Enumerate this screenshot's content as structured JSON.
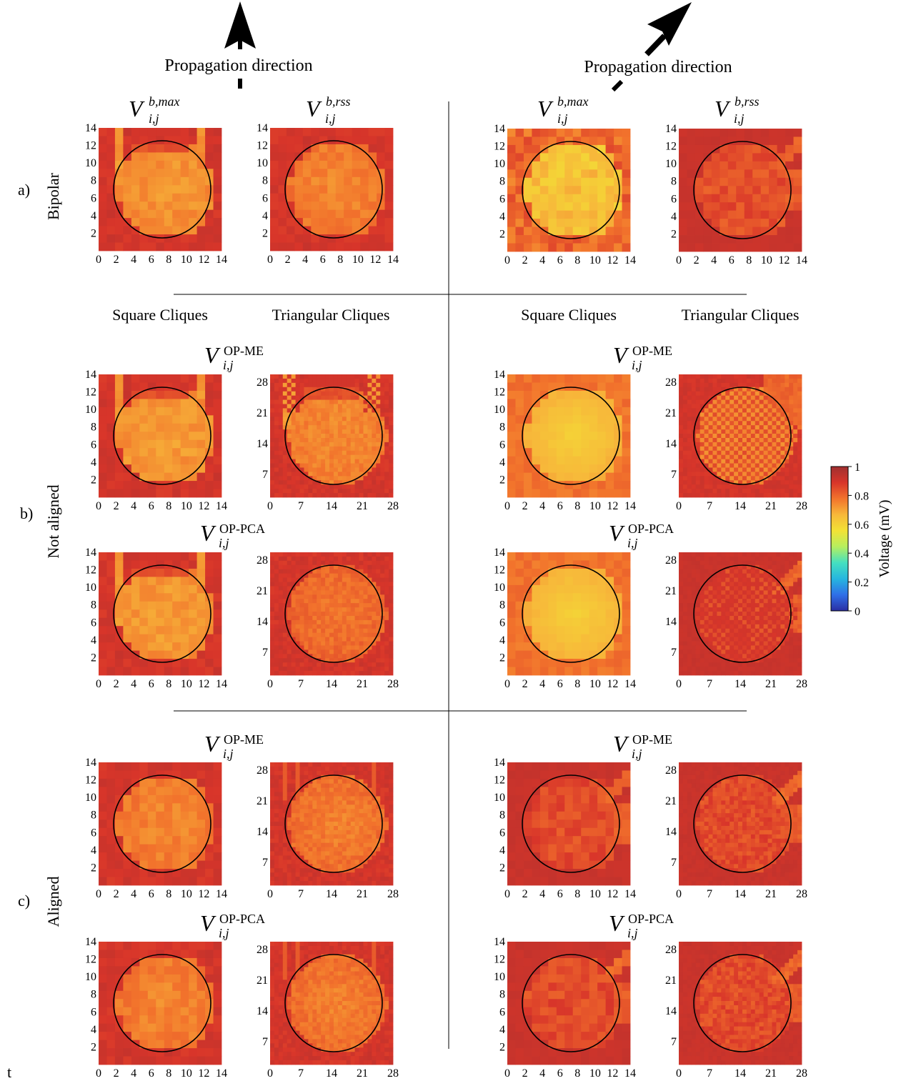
{
  "figure": {
    "propagation_label": "Propagation direction",
    "row_labels": {
      "a": "a)",
      "b": "b)",
      "c": "c)"
    },
    "row_names": {
      "a": "Bipolar",
      "b": "Not aligned",
      "c": "Aligned"
    },
    "clique_headers": {
      "square": "Square Cliques",
      "triangular": "Triangular Cliques"
    },
    "stray_text": "t",
    "math_titles": {
      "bmax": {
        "base": "V",
        "sub": "i,j",
        "sup": "b,max"
      },
      "brss": {
        "base": "V",
        "sub": "i,j",
        "sup": "b,rss"
      },
      "opme": {
        "base": "V",
        "sub": "i,j",
        "sup": "OP-ME"
      },
      "oppca": {
        "base": "V",
        "sub": "i,j",
        "sup": "OP-PCA"
      }
    }
  },
  "colorbar": {
    "label": "Voltage (mV)",
    "ticks": [
      "0",
      "0.2",
      "0.4",
      "0.6",
      "0.8",
      "1"
    ],
    "stops": [
      "#2a2ea3",
      "#2f6fe8",
      "#26b6df",
      "#45e0c0",
      "#b6ef5f",
      "#f3e235",
      "#f7b83a",
      "#f2732c",
      "#d8352a",
      "#a03030"
    ]
  },
  "chart_data": [
    {
      "type": "heatmap",
      "panel": "a-left-bmax",
      "x_ticks": [
        "0",
        "2",
        "4",
        "6",
        "8",
        "10",
        "12",
        "14"
      ],
      "y_ticks": [
        "2",
        "4",
        "6",
        "8",
        "10",
        "12",
        "14"
      ],
      "grid": [
        15,
        15
      ],
      "pattern": "bars",
      "center_mV": 0.72,
      "background_mV": 0.9
    },
    {
      "type": "heatmap",
      "panel": "a-left-brss",
      "x_ticks": [
        "0",
        "2",
        "4",
        "6",
        "8",
        "10",
        "12",
        "14"
      ],
      "y_ticks": [
        "2",
        "4",
        "6",
        "8",
        "10",
        "12",
        "14"
      ],
      "grid": [
        15,
        15
      ],
      "pattern": "disk",
      "center_mV": 0.74,
      "background_mV": 0.9
    },
    {
      "type": "heatmap",
      "panel": "a-right-bmax",
      "x_ticks": [
        "0",
        "2",
        "4",
        "6",
        "8",
        "10",
        "12",
        "14"
      ],
      "y_ticks": [
        "2",
        "4",
        "6",
        "8",
        "10",
        "12",
        "14"
      ],
      "grid": [
        15,
        15
      ],
      "pattern": "noisy-disk",
      "center_mV": 0.64,
      "background_mV": 0.82
    },
    {
      "type": "heatmap",
      "panel": "a-right-brss",
      "x_ticks": [
        "0",
        "2",
        "4",
        "6",
        "8",
        "10",
        "12",
        "14"
      ],
      "y_ticks": [
        "2",
        "4",
        "6",
        "8",
        "10",
        "12",
        "14"
      ],
      "grid": [
        15,
        15
      ],
      "pattern": "diag-red",
      "center_mV": 0.84,
      "background_mV": 0.92
    },
    {
      "type": "heatmap",
      "panel": "b-left-sq-me",
      "x_ticks": [
        "0",
        "2",
        "4",
        "6",
        "8",
        "10",
        "12",
        "14"
      ],
      "y_ticks": [
        "2",
        "4",
        "6",
        "8",
        "10",
        "12",
        "14"
      ],
      "grid": [
        15,
        15
      ],
      "pattern": "bars",
      "center_mV": 0.71,
      "background_mV": 0.9
    },
    {
      "type": "heatmap",
      "panel": "b-left-tri-me",
      "x_ticks": [
        "0",
        "7",
        "14",
        "21",
        "28"
      ],
      "y_ticks": [
        "7",
        "14",
        "21",
        "28"
      ],
      "grid": [
        29,
        29
      ],
      "pattern": "bars-checker",
      "center_mV": 0.74,
      "background_mV": 0.9
    },
    {
      "type": "heatmap",
      "panel": "b-right-sq-me",
      "x_ticks": [
        "0",
        "2",
        "4",
        "6",
        "8",
        "10",
        "12",
        "14"
      ],
      "y_ticks": [
        "2",
        "4",
        "6",
        "8",
        "10",
        "12",
        "14"
      ],
      "grid": [
        15,
        15
      ],
      "pattern": "smooth-disk",
      "center_mV": 0.6,
      "background_mV": 0.78
    },
    {
      "type": "heatmap",
      "panel": "b-right-tri-me",
      "x_ticks": [
        "0",
        "7",
        "14",
        "21",
        "28"
      ],
      "y_ticks": [
        "7",
        "14",
        "21",
        "28"
      ],
      "grid": [
        29,
        29
      ],
      "pattern": "checker-disk",
      "center_mV": 0.75,
      "background_mV": 0.9
    },
    {
      "type": "heatmap",
      "panel": "b-left-sq-pca",
      "x_ticks": [
        "0",
        "2",
        "4",
        "6",
        "8",
        "10",
        "12",
        "14"
      ],
      "y_ticks": [
        "2",
        "4",
        "6",
        "8",
        "10",
        "12",
        "14"
      ],
      "grid": [
        15,
        15
      ],
      "pattern": "bars",
      "center_mV": 0.71,
      "background_mV": 0.9
    },
    {
      "type": "heatmap",
      "panel": "b-left-tri-pca",
      "x_ticks": [
        "0",
        "7",
        "14",
        "21",
        "28"
      ],
      "y_ticks": [
        "7",
        "14",
        "21",
        "28"
      ],
      "grid": [
        29,
        29
      ],
      "pattern": "disk",
      "center_mV": 0.77,
      "background_mV": 0.9
    },
    {
      "type": "heatmap",
      "panel": "b-right-sq-pca",
      "x_ticks": [
        "0",
        "2",
        "4",
        "6",
        "8",
        "10",
        "12",
        "14"
      ],
      "y_ticks": [
        "2",
        "4",
        "6",
        "8",
        "10",
        "12",
        "14"
      ],
      "grid": [
        15,
        15
      ],
      "pattern": "smooth-disk",
      "center_mV": 0.6,
      "background_mV": 0.78
    },
    {
      "type": "heatmap",
      "panel": "b-right-tri-pca",
      "x_ticks": [
        "0",
        "7",
        "14",
        "21",
        "28"
      ],
      "y_ticks": [
        "7",
        "14",
        "21",
        "28"
      ],
      "grid": [
        29,
        29
      ],
      "pattern": "diag-checker-red",
      "center_mV": 0.86,
      "background_mV": 0.92
    },
    {
      "type": "heatmap",
      "panel": "c-left-sq-me",
      "x_ticks": [
        "0",
        "2",
        "4",
        "6",
        "8",
        "10",
        "12",
        "14"
      ],
      "y_ticks": [
        "2",
        "4",
        "6",
        "8",
        "10",
        "12",
        "14"
      ],
      "grid": [
        15,
        15
      ],
      "pattern": "disk",
      "center_mV": 0.74,
      "background_mV": 0.9
    },
    {
      "type": "heatmap",
      "panel": "c-left-tri-me",
      "x_ticks": [
        "0",
        "7",
        "14",
        "21",
        "28"
      ],
      "y_ticks": [
        "7",
        "14",
        "21",
        "28"
      ],
      "grid": [
        29,
        29
      ],
      "pattern": "disk-stripes",
      "center_mV": 0.75,
      "background_mV": 0.9
    },
    {
      "type": "heatmap",
      "panel": "c-right-sq-me",
      "x_ticks": [
        "0",
        "2",
        "4",
        "6",
        "8",
        "10",
        "12",
        "14"
      ],
      "y_ticks": [
        "2",
        "4",
        "6",
        "8",
        "10",
        "12",
        "14"
      ],
      "grid": [
        15,
        15
      ],
      "pattern": "diag-red",
      "center_mV": 0.85,
      "background_mV": 0.92
    },
    {
      "type": "heatmap",
      "panel": "c-right-tri-me",
      "x_ticks": [
        "0",
        "7",
        "14",
        "21",
        "28"
      ],
      "y_ticks": [
        "7",
        "14",
        "21",
        "28"
      ],
      "grid": [
        29,
        29
      ],
      "pattern": "diag-red",
      "center_mV": 0.85,
      "background_mV": 0.92
    },
    {
      "type": "heatmap",
      "panel": "c-left-sq-pca",
      "x_ticks": [
        "0",
        "2",
        "4",
        "6",
        "8",
        "10",
        "12",
        "14"
      ],
      "y_ticks": [
        "2",
        "4",
        "6",
        "8",
        "10",
        "12",
        "14"
      ],
      "grid": [
        15,
        15
      ],
      "pattern": "disk",
      "center_mV": 0.74,
      "background_mV": 0.9
    },
    {
      "type": "heatmap",
      "panel": "c-left-tri-pca",
      "x_ticks": [
        "0",
        "7",
        "14",
        "21",
        "28"
      ],
      "y_ticks": [
        "7",
        "14",
        "21",
        "28"
      ],
      "grid": [
        29,
        29
      ],
      "pattern": "disk-stripes",
      "center_mV": 0.75,
      "background_mV": 0.9
    },
    {
      "type": "heatmap",
      "panel": "c-right-sq-pca",
      "x_ticks": [
        "0",
        "2",
        "4",
        "6",
        "8",
        "10",
        "12",
        "14"
      ],
      "y_ticks": [
        "2",
        "4",
        "6",
        "8",
        "10",
        "12",
        "14"
      ],
      "grid": [
        15,
        15
      ],
      "pattern": "diag-red",
      "center_mV": 0.85,
      "background_mV": 0.92
    },
    {
      "type": "heatmap",
      "panel": "c-right-tri-pca",
      "x_ticks": [
        "0",
        "7",
        "14",
        "21",
        "28"
      ],
      "y_ticks": [
        "7",
        "14",
        "21",
        "28"
      ],
      "grid": [
        29,
        29
      ],
      "pattern": "diag-red",
      "center_mV": 0.85,
      "background_mV": 0.92
    }
  ]
}
